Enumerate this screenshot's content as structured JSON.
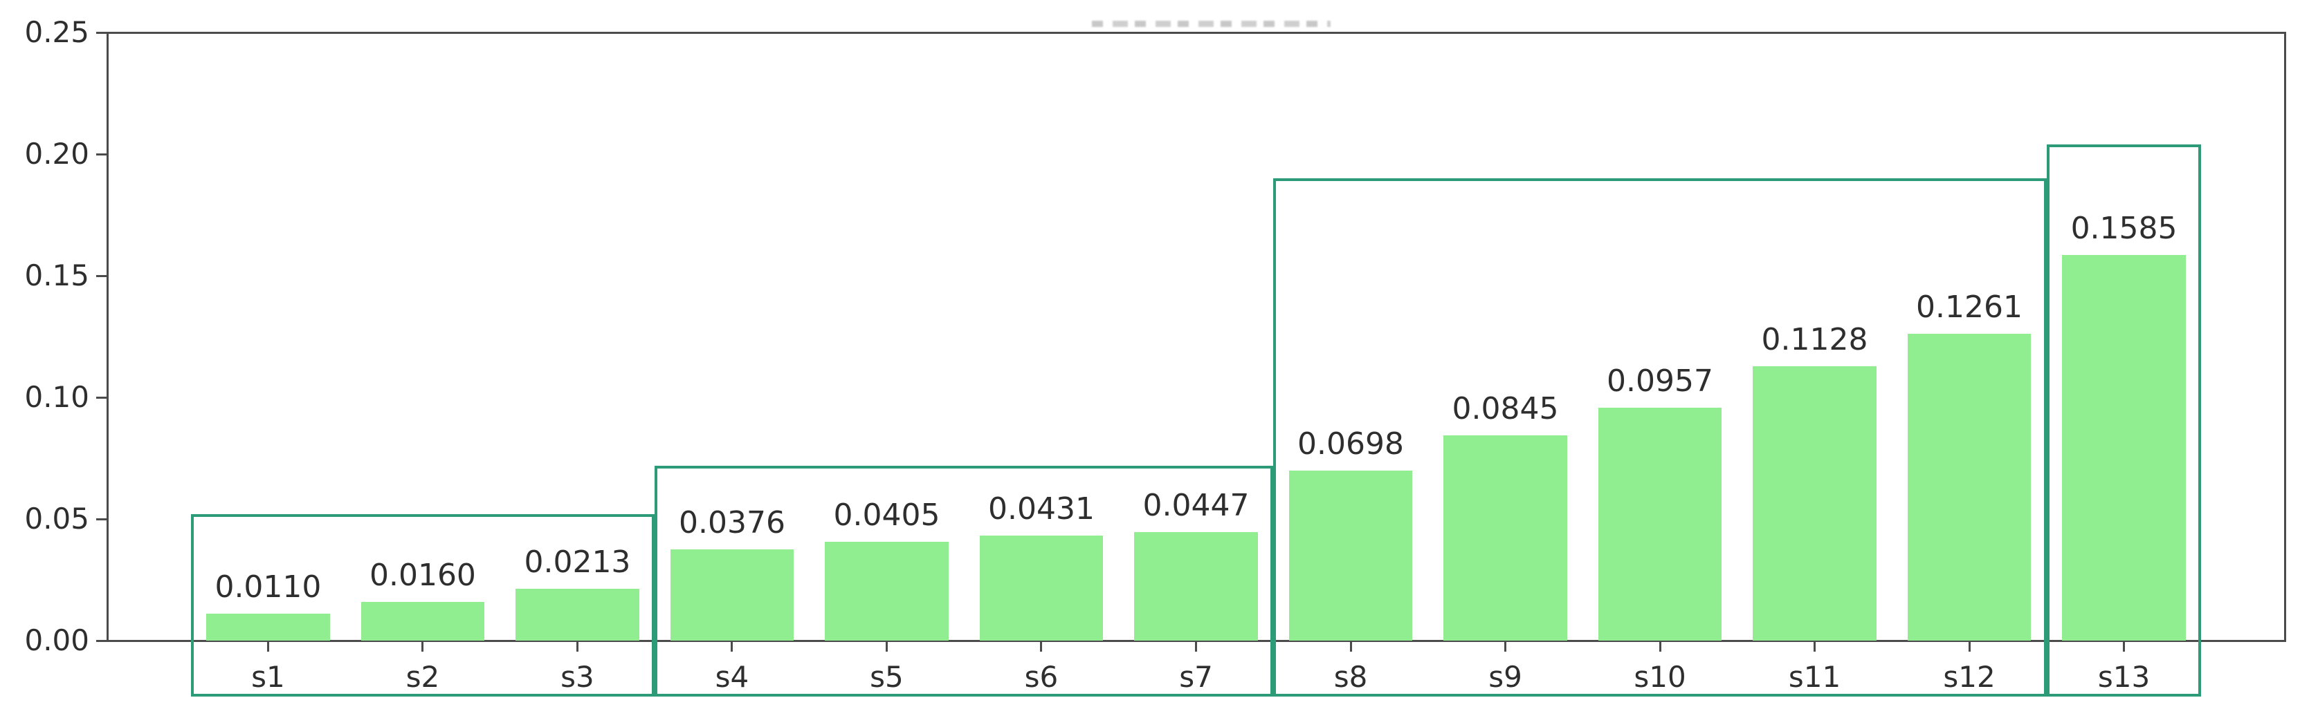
{
  "chart_data": {
    "type": "bar",
    "title": "",
    "title_cropped": true,
    "xlabel": "",
    "ylabel": "",
    "categories": [
      "s1",
      "s2",
      "s3",
      "s4",
      "s5",
      "s6",
      "s7",
      "s8",
      "s9",
      "s10",
      "s11",
      "s12",
      "s13"
    ],
    "values": [
      0.011,
      0.016,
      0.0213,
      0.0376,
      0.0405,
      0.0431,
      0.0447,
      0.0698,
      0.0845,
      0.0957,
      0.1128,
      0.1261,
      0.1585
    ],
    "bar_labels": [
      "0.0110",
      "0.0160",
      "0.0213",
      "0.0376",
      "0.0405",
      "0.0431",
      "0.0447",
      "0.0698",
      "0.0845",
      "0.0957",
      "0.1128",
      "0.1261",
      "0.1585"
    ],
    "ylim": [
      0,
      0.25
    ],
    "yticks": [
      "0.00",
      "0.05",
      "0.10",
      "0.15",
      "0.20",
      "0.25"
    ],
    "ytick_values": [
      0.0,
      0.05,
      0.1,
      0.15,
      0.2,
      0.25
    ],
    "grid": false,
    "legend": null,
    "bar_color": "#90ee90",
    "group_box_color": "#2d9b77",
    "spine_color": "#4b4b4b",
    "groups": [
      {
        "from": "s1",
        "to": "s3",
        "top": 0.052
      },
      {
        "from": "s4",
        "to": "s7",
        "top": 0.072
      },
      {
        "from": "s8",
        "to": "s12",
        "top": 0.19
      },
      {
        "from": "s13",
        "to": "s13",
        "top": 0.204
      }
    ]
  }
}
